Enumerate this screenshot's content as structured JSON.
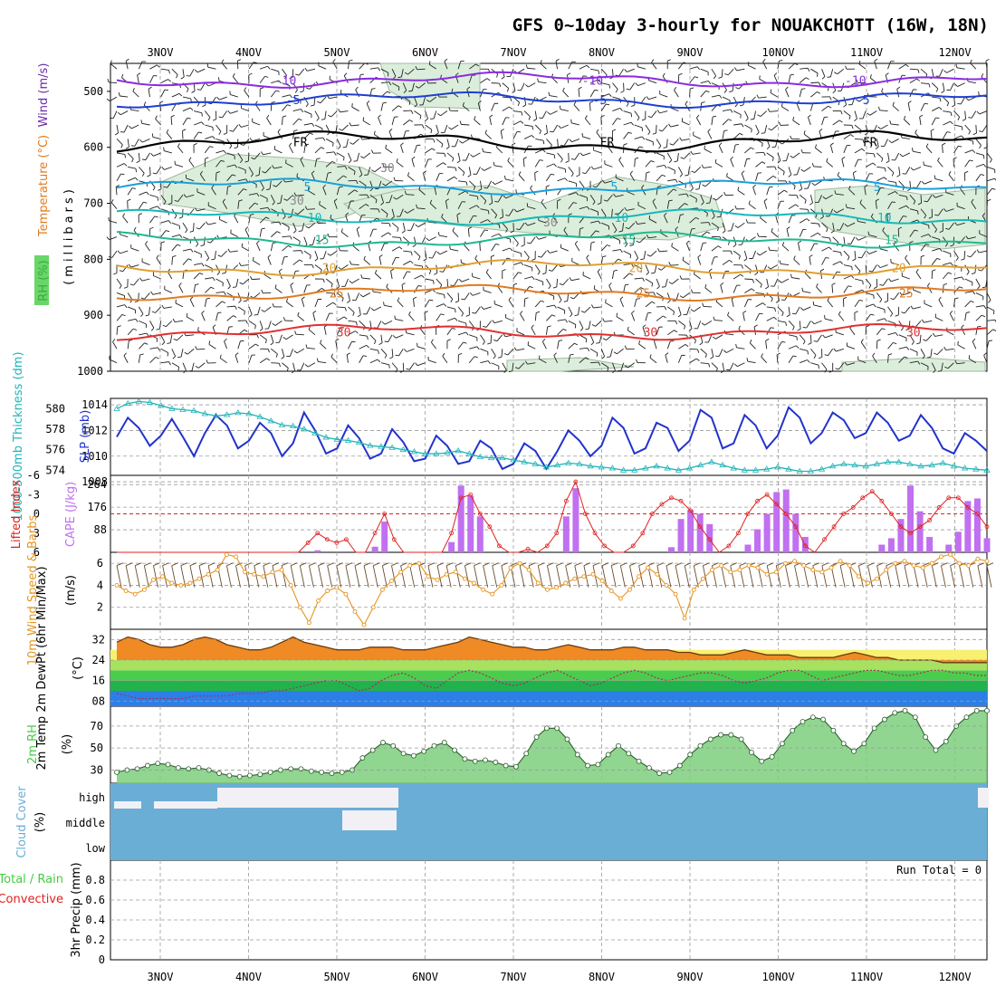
{
  "title": "GFS 0~10day 3-hourly for NOUAKCHOTT (16W, 18N)",
  "dates": [
    "3NOV",
    "4NOV",
    "5NOV",
    "6NOV",
    "7NOV",
    "8NOV",
    "9NOV",
    "10NOV",
    "11NOV",
    "12NOV"
  ],
  "colors": {
    "rh_fill": "#dbeedb",
    "rh_edge": "#9fb99f",
    "slp": "#2233cc",
    "thickness": "#22b5b8",
    "cape": "#c070f0",
    "lifted": "#e02020",
    "wind": "#e69520",
    "barb": "#6a4a2a",
    "cloud": "#6aaed6",
    "rh_green": "#44cc44"
  },
  "chart_data": [
    {
      "type": "line",
      "panel": "upper-air",
      "ylabel_parts": [
        "Wind (m/s)",
        "Temperature (°C)",
        "RH (%)",
        "(millibars)"
      ],
      "yticks": [
        "500",
        "600",
        "700",
        "800",
        "900",
        "1000"
      ],
      "ylim": [
        1000,
        450
      ],
      "series": [
        {
          "name": "-10",
          "pressure_mb": 480,
          "label": "-10",
          "color": "#8a2be2"
        },
        {
          "name": "-5",
          "pressure_mb": 515,
          "label": "-5",
          "color": "#1f3fd0"
        },
        {
          "name": "FR",
          "pressure_mb": 590,
          "label": "FR",
          "color": "#000000"
        },
        {
          "name": "5",
          "pressure_mb": 670,
          "label": "5",
          "color": "#1aa0d8"
        },
        {
          "name": "10",
          "pressure_mb": 725,
          "label": "10",
          "color": "#16b8b8"
        },
        {
          "name": "15",
          "pressure_mb": 765,
          "label": "15",
          "color": "#20b890"
        },
        {
          "name": "20",
          "pressure_mb": 815,
          "label": "20",
          "color": "#e0a030"
        },
        {
          "name": "25",
          "pressure_mb": 860,
          "label": "25",
          "color": "#e07b20"
        },
        {
          "name": "30",
          "pressure_mb": 930,
          "label": "30",
          "color": "#e03030"
        }
      ],
      "rh_contour_labels": [
        "30"
      ]
    },
    {
      "type": "line",
      "panel": "slp-thickness",
      "ylabel": "SLP (mb)",
      "ylabel2": "1000-500mb Thickness (dm)",
      "yticks_right": [
        "1014",
        "1012",
        "1010",
        "1008"
      ],
      "yticks_left": [
        "580",
        "578",
        "576",
        "574"
      ],
      "series": [
        {
          "name": "SLP (mb)",
          "values": [
            1011.5,
            1013.0,
            1012.2,
            1010.8,
            1011.6,
            1012.9,
            1011.5,
            1010.0,
            1011.8,
            1013.2,
            1012.4,
            1010.6,
            1011.2,
            1012.6,
            1011.8,
            1010.0,
            1011.0,
            1013.4,
            1012.0,
            1010.2,
            1010.6,
            1012.4,
            1011.4,
            1009.8,
            1010.2,
            1012.1,
            1011.1,
            1009.6,
            1009.8,
            1011.6,
            1010.8,
            1009.4,
            1009.6,
            1011.2,
            1010.6,
            1009.0,
            1009.4,
            1011.0,
            1010.4,
            1009.0,
            1010.4,
            1012.0,
            1011.2,
            1010.0,
            1010.8,
            1013.0,
            1012.2,
            1010.2,
            1010.6,
            1012.6,
            1012.2,
            1010.4,
            1011.2,
            1013.6,
            1013.0,
            1010.6,
            1011.0,
            1013.2,
            1012.4,
            1010.6,
            1011.6,
            1013.8,
            1013.0,
            1011.0,
            1011.8,
            1013.4,
            1012.8,
            1011.4,
            1011.8,
            1013.4,
            1012.6,
            1011.2,
            1011.6,
            1013.2,
            1012.2,
            1010.6,
            1010.2,
            1011.8,
            1011.2,
            1010.4
          ]
        },
        {
          "name": "1000-500mb Thickness (dm)",
          "values": [
            580.0,
            580.5,
            580.7,
            580.6,
            580.3,
            580.0,
            579.9,
            579.8,
            579.5,
            579.3,
            579.4,
            579.6,
            579.5,
            579.2,
            578.8,
            578.4,
            578.3,
            578.0,
            577.6,
            577.2,
            577.0,
            576.9,
            576.7,
            576.4,
            576.3,
            576.2,
            576.0,
            575.8,
            575.6,
            575.6,
            575.7,
            575.9,
            575.6,
            575.3,
            575.2,
            575.2,
            575.0,
            574.8,
            574.6,
            574.3,
            574.5,
            574.7,
            574.6,
            574.4,
            574.3,
            574.2,
            574.0,
            574.0,
            574.2,
            574.4,
            574.2,
            574.0,
            574.2,
            574.5,
            574.8,
            574.5,
            574.2,
            574.0,
            574.0,
            574.1,
            574.3,
            574.1,
            573.9,
            573.9,
            574.1,
            574.4,
            574.6,
            574.5,
            574.4,
            574.6,
            574.8,
            574.8,
            574.6,
            574.4,
            574.5,
            574.7,
            574.4,
            574.2,
            574.1,
            574.0
          ]
        }
      ]
    },
    {
      "type": "bar",
      "panel": "cape-lifted-index",
      "ylabel": "CAPE (J/kg)",
      "ylabel2": "Lifted Index",
      "yticks_cape": [
        "264",
        "176",
        "88"
      ],
      "yticks_li": [
        "-6",
        "-3",
        "0",
        "3",
        "6"
      ],
      "series": [
        {
          "name": "CAPE (J/kg)",
          "values": [
            0,
            0,
            0,
            0,
            0,
            0,
            0,
            0,
            0,
            0,
            0,
            0,
            0,
            0,
            0,
            0,
            0,
            0,
            0,
            0,
            0,
            8,
            0,
            0,
            0,
            0,
            0,
            22,
            120,
            0,
            0,
            0,
            0,
            0,
            0,
            40,
            260,
            220,
            140,
            0,
            0,
            0,
            0,
            0,
            0,
            0,
            0,
            140,
            250,
            0,
            0,
            0,
            0,
            0,
            0,
            0,
            0,
            0,
            20,
            130,
            165,
            150,
            110,
            0,
            0,
            0,
            30,
            90,
            150,
            235,
            245,
            150,
            60,
            0,
            0,
            0,
            0,
            0,
            0,
            0,
            30,
            55,
            130,
            260,
            160,
            60,
            0,
            30,
            80,
            200,
            210,
            55
          ]
        },
        {
          "name": "Lifted Index",
          "values": [
            7,
            7,
            7,
            7,
            7,
            7,
            7,
            7,
            7,
            7,
            7,
            7,
            7,
            7,
            7,
            7,
            7,
            6,
            6,
            6.5,
            4.5,
            3,
            4,
            4.5,
            4,
            6,
            6,
            3,
            0,
            4,
            6,
            6.5,
            6.5,
            6.5,
            6,
            3,
            -2.5,
            -3,
            0,
            2,
            5,
            6,
            6,
            5.5,
            6,
            5,
            3,
            -2,
            -5,
            0,
            3,
            5,
            6,
            6,
            5,
            3,
            0,
            -1.5,
            -2.5,
            -2,
            -0.5,
            2,
            4,
            6,
            5,
            3,
            0,
            -2,
            -3,
            -1.5,
            0,
            2,
            5,
            6,
            4,
            2,
            0,
            -1,
            -2.5,
            -3.5,
            -2,
            0,
            2,
            3,
            2,
            1,
            -1,
            -2.5,
            -2.5,
            -1,
            0,
            2
          ]
        }
      ]
    },
    {
      "type": "line",
      "panel": "10m-wind",
      "ylabel": "10m Wind Speed & Barbs",
      "ylabel_units": "(m/s)",
      "yticks": [
        "6",
        "4",
        "2"
      ],
      "ylim": [
        0,
        7
      ],
      "series": [
        {
          "name": "10m Wind Speed (m/s)",
          "values": [
            4.0,
            3.5,
            3.2,
            3.6,
            4.5,
            4.8,
            4.2,
            4.0,
            4.2,
            4.6,
            5.0,
            5.4,
            6.8,
            6.6,
            5.2,
            5.0,
            4.8,
            5.2,
            5.4,
            4.0,
            2.0,
            0.6,
            2.6,
            3.5,
            3.8,
            3.2,
            1.6,
            0.4,
            2.0,
            3.6,
            4.4,
            5.2,
            5.8,
            6.0,
            4.8,
            4.5,
            5.0,
            5.2,
            4.6,
            4.2,
            3.6,
            3.2,
            4.0,
            5.6,
            6.0,
            5.4,
            4.2,
            3.6,
            3.8,
            4.2,
            4.6,
            4.8,
            5.0,
            4.4,
            3.5,
            2.8,
            3.6,
            4.8,
            5.6,
            5.0,
            4.0,
            3.2,
            1.0,
            3.6,
            4.6,
            5.4,
            5.8,
            5.2,
            5.4,
            5.8,
            5.6,
            5.0,
            5.2,
            6.0,
            6.2,
            5.8,
            5.4,
            5.2,
            5.6,
            6.2,
            5.8,
            4.8,
            4.2,
            4.6,
            5.4,
            6.0,
            6.2,
            5.8,
            5.6,
            6.0,
            6.6,
            6.8,
            6.0,
            5.8,
            6.4,
            6.2
          ]
        }
      ]
    },
    {
      "type": "area",
      "panel": "2m-temp",
      "ylabel": "2m Temp 2m DewPt (6hr Min/Max)",
      "ylabel_units": "(°C)",
      "yticks": [
        "32",
        "24",
        "16",
        "08"
      ],
      "ylim": [
        6,
        36
      ],
      "series": [
        {
          "name": "2m Temp (°C)",
          "values": [
            31,
            33,
            32,
            30,
            29,
            29,
            30,
            32,
            33,
            32,
            30,
            29,
            28,
            28,
            29,
            31,
            33,
            31,
            30,
            29,
            28,
            28,
            28,
            29,
            29,
            29,
            28,
            28,
            28,
            29,
            30,
            31,
            33,
            32,
            31,
            30,
            29,
            29,
            28,
            28,
            29,
            30,
            29,
            28,
            28,
            28,
            29,
            29,
            28,
            28,
            28,
            27,
            27,
            26,
            26,
            26,
            27,
            28,
            27,
            26,
            26,
            26,
            25,
            25,
            25,
            25,
            26,
            27,
            26,
            25,
            25,
            24,
            24,
            24,
            24,
            23,
            23,
            23,
            23,
            23
          ]
        },
        {
          "name": "2m DewPt (°C)",
          "values": [
            11,
            10,
            9,
            9,
            9,
            9,
            9,
            10,
            10,
            10,
            10,
            11,
            11,
            11,
            12,
            12,
            13,
            14,
            15,
            16,
            16,
            14,
            12,
            13,
            16,
            18,
            19,
            17,
            14,
            13,
            16,
            19,
            20,
            19,
            17,
            15,
            14,
            15,
            17,
            19,
            20,
            18,
            16,
            14,
            15,
            17,
            19,
            20,
            19,
            17,
            16,
            17,
            18,
            19,
            19,
            18,
            16,
            15,
            16,
            17,
            19,
            20,
            20,
            18,
            16,
            17,
            18,
            19,
            20,
            20,
            19,
            18,
            18,
            19,
            20,
            20,
            19,
            19,
            18,
            18
          ]
        }
      ]
    },
    {
      "type": "area",
      "panel": "2m-rh",
      "ylabel": "2m RH",
      "ylabel_units": "(%)",
      "yticks": [
        "70",
        "50",
        "30"
      ],
      "ylim": [
        18,
        88
      ],
      "series": [
        {
          "name": "2m RH (%)",
          "values": [
            28,
            30,
            31,
            34,
            36,
            35,
            32,
            31,
            32,
            30,
            27,
            25,
            24,
            25,
            26,
            28,
            30,
            31,
            31,
            29,
            28,
            27,
            28,
            30,
            41,
            48,
            55,
            52,
            45,
            43,
            47,
            52,
            55,
            48,
            40,
            38,
            39,
            37,
            34,
            33,
            45,
            60,
            68,
            68,
            58,
            44,
            34,
            35,
            44,
            52,
            45,
            38,
            32,
            27,
            28,
            34,
            44,
            52,
            58,
            62,
            62,
            58,
            46,
            38,
            42,
            54,
            66,
            74,
            78,
            76,
            66,
            54,
            47,
            54,
            68,
            76,
            82,
            84,
            78,
            60,
            48,
            56,
            70,
            78,
            84,
            84
          ]
        }
      ]
    },
    {
      "type": "area",
      "panel": "cloud-cover",
      "ylabel": "Cloud Cover",
      "ylabel_units": "(%)",
      "levels": [
        "high",
        "middle",
        "low"
      ]
    },
    {
      "type": "bar",
      "panel": "3hr-precip",
      "ylabel": "3hr Precip (mm)",
      "ylabel2": "Total / Rain",
      "ylabel3": "Convective",
      "yticks": [
        "0.8",
        "0.6",
        "0.4",
        "0.2",
        "0"
      ],
      "ylim": [
        0,
        1
      ],
      "run_total_label": "Run Total = 0",
      "values": []
    }
  ]
}
